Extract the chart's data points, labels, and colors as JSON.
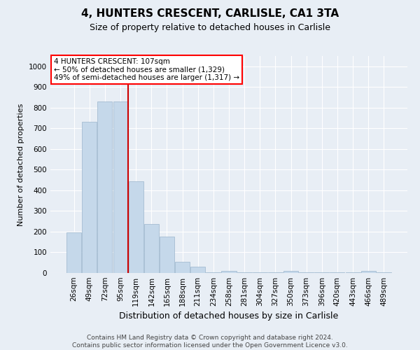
{
  "title1": "4, HUNTERS CRESCENT, CARLISLE, CA1 3TA",
  "title2": "Size of property relative to detached houses in Carlisle",
  "xlabel": "Distribution of detached houses by size in Carlisle",
  "ylabel": "Number of detached properties",
  "footnote": "Contains HM Land Registry data © Crown copyright and database right 2024.\nContains public sector information licensed under the Open Government Licence v3.0.",
  "bar_color": "#c5d8ea",
  "bar_edge_color": "#9ab5cc",
  "annotation_text": "4 HUNTERS CRESCENT: 107sqm\n← 50% of detached houses are smaller (1,329)\n49% of semi-detached houses are larger (1,317) →",
  "property_line_color": "#cc0000",
  "property_line_idx": 3.5,
  "categories": [
    "26sqm",
    "49sqm",
    "72sqm",
    "95sqm",
    "119sqm",
    "142sqm",
    "165sqm",
    "188sqm",
    "211sqm",
    "234sqm",
    "258sqm",
    "281sqm",
    "304sqm",
    "327sqm",
    "350sqm",
    "373sqm",
    "396sqm",
    "420sqm",
    "443sqm",
    "466sqm",
    "489sqm"
  ],
  "values": [
    195,
    730,
    830,
    830,
    445,
    238,
    175,
    55,
    30,
    5,
    10,
    5,
    5,
    5,
    10,
    5,
    5,
    5,
    5,
    10,
    5
  ],
  "ylim": [
    0,
    1050
  ],
  "yticks": [
    0,
    100,
    200,
    300,
    400,
    500,
    600,
    700,
    800,
    900,
    1000
  ],
  "bg_color": "#e8eef5",
  "plot_bg_color": "#e8eef5",
  "grid_color": "#ffffff",
  "title1_fontsize": 11,
  "title2_fontsize": 9,
  "ylabel_fontsize": 8,
  "xlabel_fontsize": 9,
  "tick_fontsize": 7.5,
  "footnote_fontsize": 6.5
}
